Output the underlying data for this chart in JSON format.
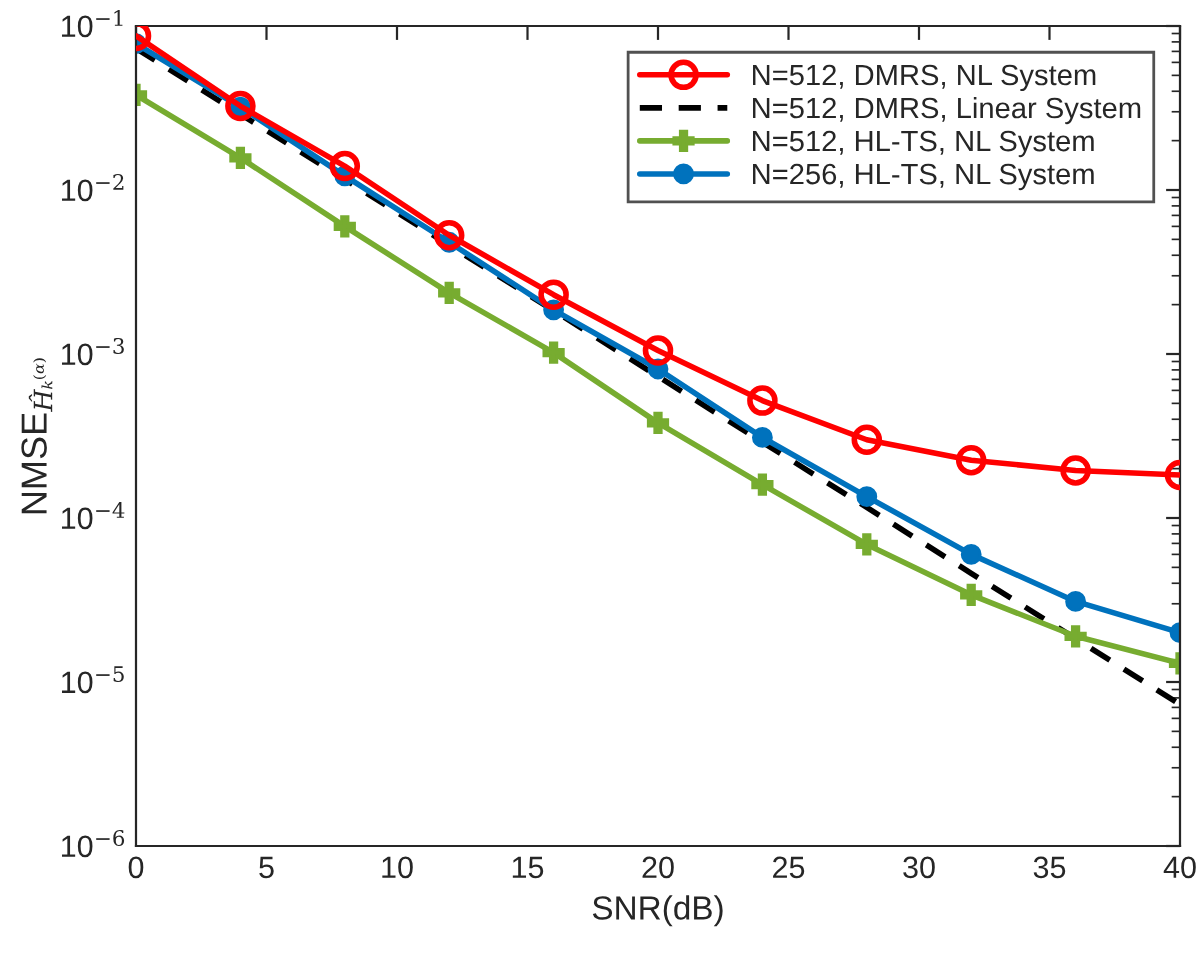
{
  "chart_data": {
    "type": "line",
    "xlabel": "SNR(dB)",
    "ylabel": "NMSE$_{Ĥₖ⁽ᵅ⁾}$",
    "log": "y",
    "x": [
      0,
      4,
      8,
      12,
      16,
      20,
      24,
      28,
      32,
      36,
      40
    ],
    "xlim": [
      0,
      40
    ],
    "xticks": [
      0,
      5,
      10,
      15,
      20,
      25,
      30,
      35,
      40
    ],
    "ylim": [
      1e-06,
      0.1
    ],
    "yticks": [
      {
        "value": 1e-06,
        "label": "10$^{−6}$"
      },
      {
        "value": 1e-05,
        "label": "10$^{−5}$"
      },
      {
        "value": 0.0001,
        "label": "10$^{−4}$"
      },
      {
        "value": 0.001,
        "label": "10$^{−3}$"
      },
      {
        "value": 0.01,
        "label": "10$^{−2}$"
      },
      {
        "value": 0.1,
        "label": "10$^{−1}$"
      }
    ],
    "grid": false,
    "legend": "top right",
    "series": [
      {
        "name": "N=512, DMRS, NL System",
        "color": "#ff0000",
        "marker": "circle",
        "line_style": "solid",
        "values": [
          0.087,
          0.0325,
          0.014,
          0.0053,
          0.0023,
          0.00105,
          0.00052,
          0.0003,
          0.000225,
          0.000195,
          0.000183
        ]
      },
      {
        "name": "N=512, DMRS, Linear System",
        "color": "#000000",
        "marker": "none",
        "line_style": "dashed",
        "values": [
          0.073,
          0.029,
          0.0116,
          0.0046,
          0.00184,
          0.00073,
          0.00029,
          0.000116,
          4.6e-05,
          1.84e-05,
          7.3e-06
        ]
      },
      {
        "name": "N=512, HL-TS, NL System",
        "color": "#77ac30",
        "marker": "cross",
        "line_style": "solid",
        "values": [
          0.038,
          0.0157,
          0.006,
          0.00236,
          0.00102,
          0.00038,
          0.00016,
          6.9e-05,
          3.4e-05,
          1.9e-05,
          1.3e-05
        ]
      },
      {
        "name": "N=256, HL-TS, NL System",
        "color": "#0072bd",
        "marker": "circle",
        "line_style": "solid",
        "values": [
          0.078,
          0.032,
          0.0122,
          0.0048,
          0.00186,
          0.00081,
          0.00031,
          0.000135,
          6e-05,
          3.1e-05,
          2e-05
        ]
      }
    ]
  }
}
